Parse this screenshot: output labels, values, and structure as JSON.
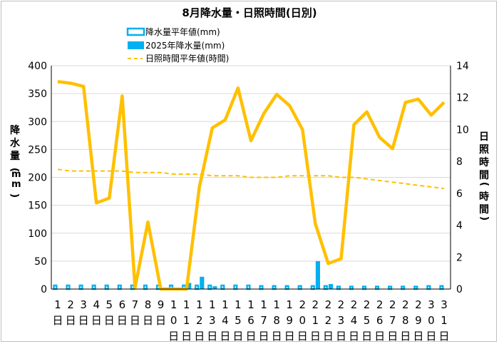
{
  "chart_data": {
    "type": "bar-line-combo",
    "title": "8月降水量・日照時間(日別)",
    "ylabel_left": "降水量(mm)",
    "ylabel_right": "日照時間(時間)",
    "ylim_left": [
      0,
      400
    ],
    "ylim_right": [
      0,
      14
    ],
    "yticks_left": [
      0,
      50,
      100,
      150,
      200,
      250,
      300,
      350,
      400
    ],
    "yticks_right": [
      0,
      2,
      4,
      6,
      8,
      10,
      12,
      14
    ],
    "grid": "horizontal",
    "legend_position": "top-center",
    "categories": [
      [
        "1",
        "日"
      ],
      [
        "2",
        "日"
      ],
      [
        "3",
        "日"
      ],
      [
        "4",
        "日"
      ],
      [
        "5",
        "日"
      ],
      [
        "6",
        "日"
      ],
      [
        "7",
        "日"
      ],
      [
        "8",
        "日"
      ],
      [
        "9",
        "日"
      ],
      [
        "1",
        "0",
        "日"
      ],
      [
        "1",
        "1",
        "日"
      ],
      [
        "1",
        "2",
        "日"
      ],
      [
        "1",
        "3",
        "日"
      ],
      [
        "1",
        "4",
        "日"
      ],
      [
        "1",
        "5",
        "日"
      ],
      [
        "1",
        "6",
        "日"
      ],
      [
        "1",
        "7",
        "日"
      ],
      [
        "1",
        "8",
        "日"
      ],
      [
        "1",
        "9",
        "日"
      ],
      [
        "2",
        "0",
        "日"
      ],
      [
        "2",
        "1",
        "日"
      ],
      [
        "2",
        "2",
        "日"
      ],
      [
        "2",
        "3",
        "日"
      ],
      [
        "2",
        "4",
        "日"
      ],
      [
        "2",
        "5",
        "日"
      ],
      [
        "2",
        "6",
        "日"
      ],
      [
        "2",
        "7",
        "日"
      ],
      [
        "2",
        "8",
        "日"
      ],
      [
        "2",
        "9",
        "日"
      ],
      [
        "3",
        "0",
        "日"
      ],
      [
        "3",
        "1",
        "日"
      ]
    ],
    "series": [
      {
        "name": "降水量平年値(mm)",
        "type": "bar",
        "axis": "left",
        "color": "#00b0f0",
        "style": "outline",
        "values": [
          8,
          8,
          8,
          8,
          8,
          8,
          8,
          8,
          8,
          8,
          8,
          8,
          8,
          8,
          8,
          8,
          7,
          7,
          7,
          7,
          7,
          7,
          6,
          6,
          6,
          6,
          6,
          6,
          6,
          7,
          7
        ]
      },
      {
        "name": "2025年降水量(mm)",
        "type": "bar",
        "axis": "left",
        "color": "#00b0f0",
        "style": "filled",
        "values": [
          0,
          0,
          0,
          0,
          0,
          0,
          0,
          0,
          0,
          0,
          11,
          22,
          5,
          0,
          0,
          0,
          0,
          0,
          0,
          0,
          50,
          9,
          0,
          0,
          0,
          0,
          0,
          0,
          0,
          0,
          0
        ]
      },
      {
        "name": "日照時間平年値(時間)",
        "type": "line",
        "axis": "right",
        "color": "#ffc000",
        "style": "dashed",
        "values": [
          7.5,
          7.4,
          7.4,
          7.4,
          7.4,
          7.4,
          7.3,
          7.3,
          7.3,
          7.2,
          7.2,
          7.2,
          7.1,
          7.1,
          7.1,
          7.0,
          7.0,
          7.0,
          7.1,
          7.1,
          7.1,
          7.1,
          7.0,
          7.0,
          6.9,
          6.8,
          6.7,
          6.6,
          6.5,
          6.4,
          6.3
        ]
      },
      {
        "name": "2025年日照時間(時間)",
        "type": "line",
        "axis": "right",
        "color": "#ffc000",
        "style": "solid",
        "values": [
          13.0,
          12.9,
          12.7,
          5.4,
          5.7,
          12.1,
          0.1,
          4.2,
          0.0,
          0.0,
          0.0,
          6.4,
          10.1,
          10.6,
          12.6,
          9.3,
          11.0,
          12.2,
          11.5,
          10.0,
          4.1,
          1.6,
          1.9,
          10.3,
          11.1,
          9.5,
          8.8,
          11.7,
          11.9,
          10.9,
          11.7
        ]
      }
    ]
  }
}
